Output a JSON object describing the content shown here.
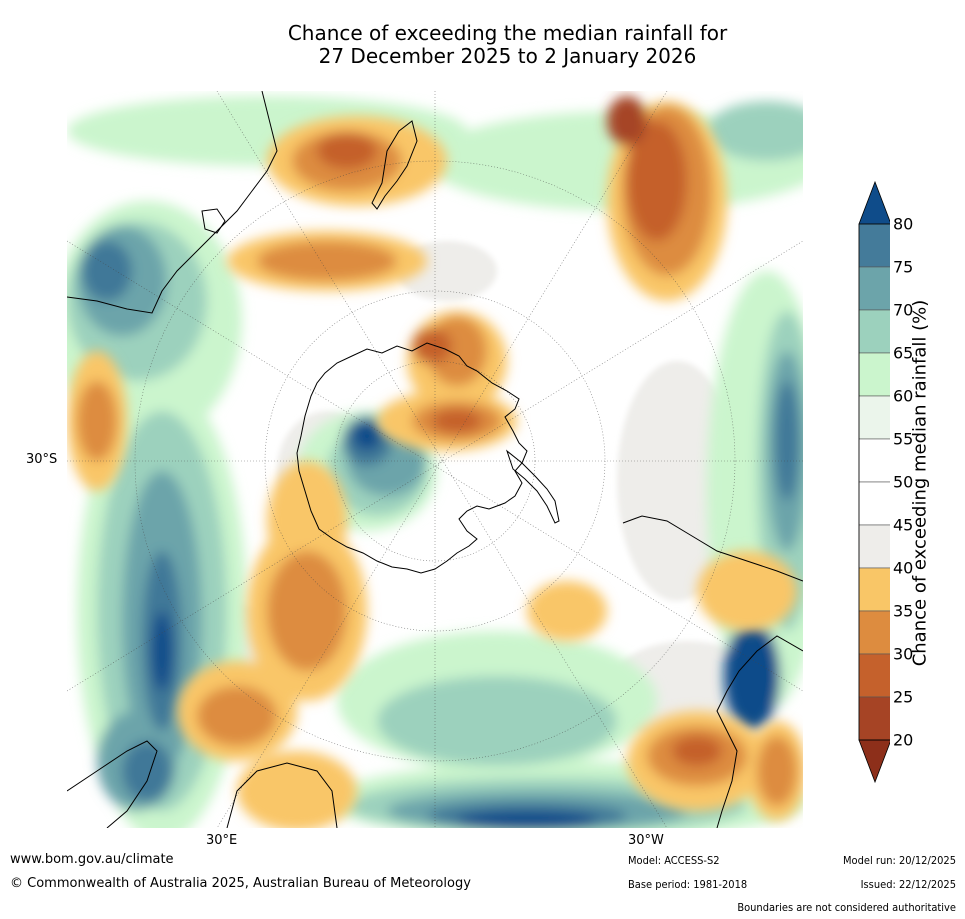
{
  "title_line1": "Chance of exceeding the median rainfall for",
  "title_line2": "27 December 2025 to 2 January 2026",
  "map": {
    "lat_label": "30°S",
    "lon_label_left": "30°E",
    "lon_label_right": "30°W",
    "colors": {
      "ocean_neutral": "#ffffff",
      "dry_light": "#f9c667",
      "dry_mid": "#dd8c3f",
      "dry_dark": "#be5c2b",
      "wet_light": "#cbf5cd",
      "wet_mid": "#9cd1bd",
      "wet_dark": "#6ca4aa",
      "wet_darker": "#3f7898",
      "wet_darkest": "#0f4c8a",
      "near_median": "#eeedea",
      "coast": "#000000"
    }
  },
  "colorbar": {
    "label": "Chance of exceeding median rainfall (%)",
    "ticks": [
      "80",
      "75",
      "70",
      "65",
      "60",
      "55",
      "50",
      "45",
      "40",
      "35",
      "30",
      "25",
      "20"
    ],
    "band_colors": [
      "#0f4c8a",
      "#447b9a",
      "#6ca4aa",
      "#9cd1bd",
      "#cbf5cd",
      "#ebf5eb",
      "#ffffff",
      "#ffffff",
      "#eeedea",
      "#f9c667",
      "#dd8c3f",
      "#c5612c",
      "#a64425",
      "#8d2f1a"
    ]
  },
  "footer": {
    "website": "www.bom.gov.au/climate",
    "copyright": "© Commonwealth of Australia 2025, Australian Bureau of Meteorology",
    "model": "Model: ACCESS-S2",
    "base_period": "Base period: 1981-2018",
    "model_run": "Model run: 20/12/2025",
    "issued": "Issued: 22/12/2025",
    "disclaimer": "Boundaries are not considered authoritative"
  }
}
